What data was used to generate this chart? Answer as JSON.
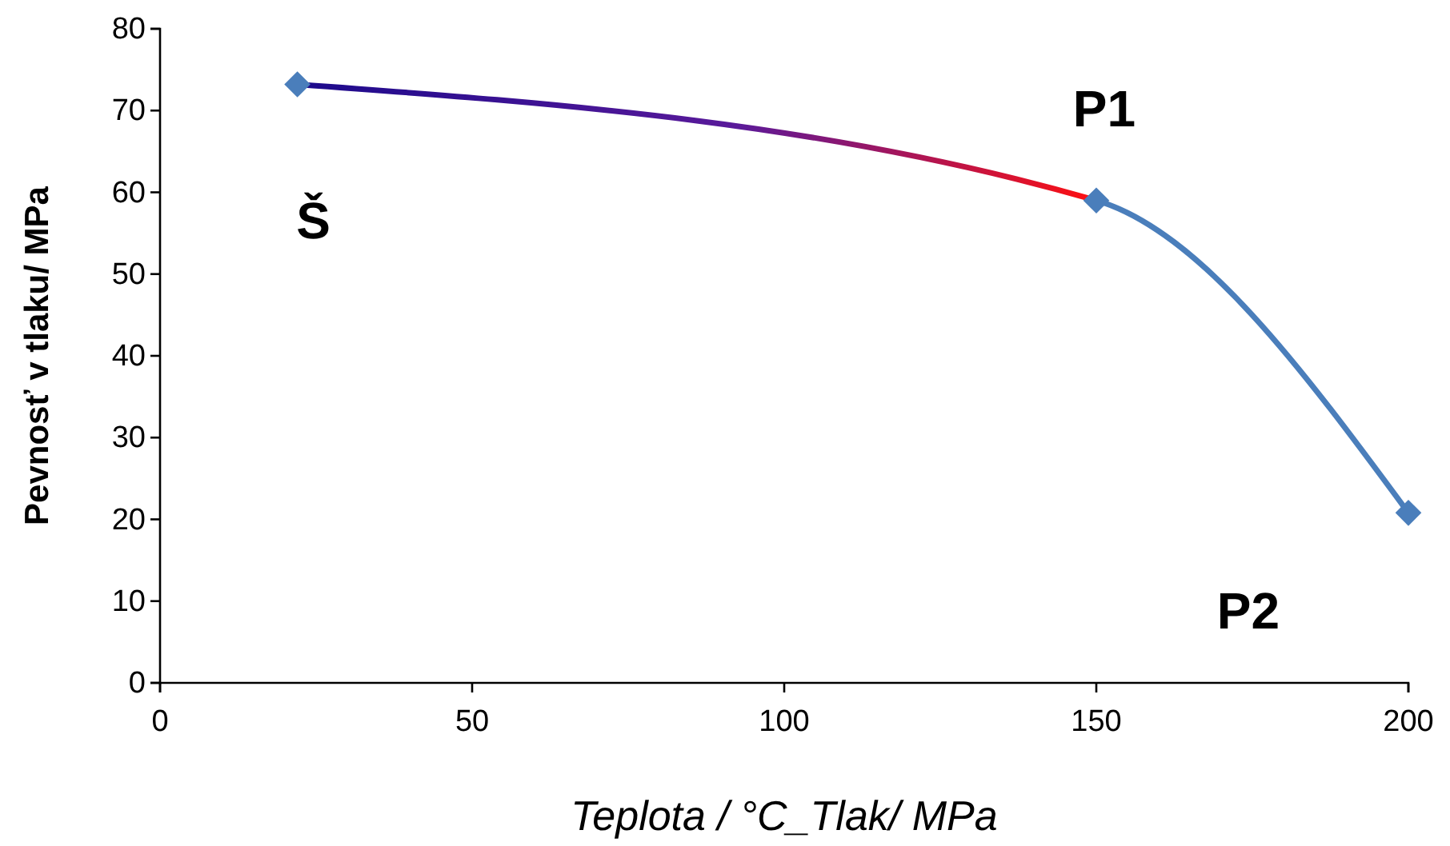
{
  "chart_data": {
    "type": "line",
    "xlabel": "Teplota / °C_Tlak/ MPa",
    "ylabel": "Pevnosť v tlaku/ MPa",
    "x": [
      22,
      150,
      200
    ],
    "series": [
      {
        "color": "#4a7ebb",
        "values": [
          73.2,
          59,
          20.8
        ]
      }
    ],
    "xlim": [
      0,
      200
    ],
    "xticks": [
      0,
      50,
      100,
      150,
      200
    ],
    "ylim": [
      0,
      80
    ],
    "yticks": [
      0,
      10,
      20,
      30,
      40,
      50,
      60,
      70,
      80
    ],
    "marker": "diamond",
    "line_style": "solid",
    "grid": false,
    "annotations": [
      "Š",
      "P1",
      "P2"
    ]
  }
}
